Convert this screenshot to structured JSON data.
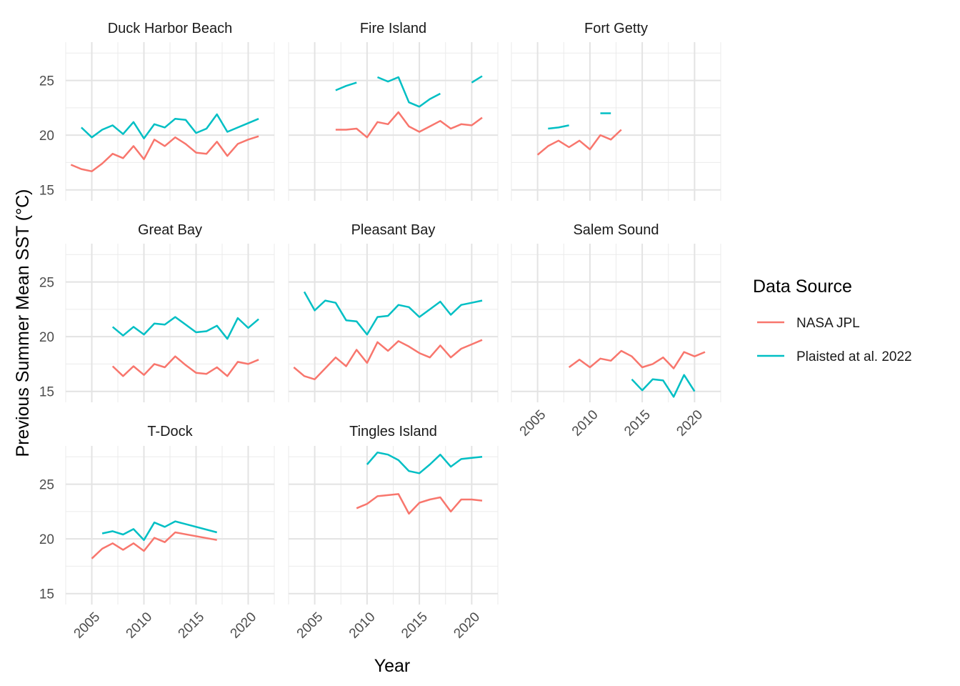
{
  "chart_data": {
    "type": "line",
    "facet": "small-multiples",
    "xlabel": "Year",
    "ylabel": "Previous Summer Mean SST (°C)",
    "xlim": [
      2002.5,
      2022.5
    ],
    "ylim": [
      14,
      28.5
    ],
    "x_ticks": [
      2005,
      2010,
      2015,
      2020
    ],
    "y_ticks": [
      15,
      20,
      25
    ],
    "grid": true,
    "legend": {
      "title": "Data Source",
      "position": "right",
      "entries": [
        {
          "name": "NASA JPL",
          "color": "#F8766D"
        },
        {
          "name": "Plaisted at al. 2022",
          "color": "#00BFC4"
        }
      ]
    },
    "panels": [
      {
        "name": "Duck Harbor Beach",
        "series": [
          {
            "name": "NASA JPL",
            "x": [
              2003,
              2004,
              2005,
              2006,
              2007,
              2008,
              2009,
              2010,
              2011,
              2012,
              2013,
              2014,
              2015,
              2016,
              2017,
              2018,
              2019,
              2020,
              2021
            ],
            "y": [
              17.3,
              16.9,
              16.7,
              17.4,
              18.3,
              17.9,
              19.0,
              17.8,
              19.6,
              19.0,
              19.8,
              19.2,
              18.4,
              18.3,
              19.4,
              18.1,
              19.2,
              19.6,
              19.9
            ]
          },
          {
            "name": "Plaisted at al. 2022",
            "x": [
              2004,
              2005,
              2006,
              2007,
              2008,
              2009,
              2010,
              2011,
              2012,
              2013,
              2014,
              2015,
              2016,
              2017,
              2018,
              2019,
              2020,
              2021
            ],
            "y": [
              20.7,
              19.8,
              20.5,
              20.9,
              20.1,
              21.2,
              19.7,
              21.0,
              20.7,
              21.5,
              21.4,
              20.2,
              20.6,
              21.9,
              20.3,
              20.7,
              21.1,
              21.5
            ]
          }
        ]
      },
      {
        "name": "Fire Island",
        "series": [
          {
            "name": "NASA JPL",
            "x": [
              2007,
              2008,
              2009,
              2010,
              2011,
              2012,
              2013,
              2014,
              2015,
              2016,
              2017,
              2018,
              2019,
              2020,
              2021
            ],
            "y": [
              20.5,
              20.5,
              20.6,
              19.8,
              21.2,
              21.0,
              22.1,
              20.8,
              20.3,
              20.8,
              21.3,
              20.6,
              21.0,
              20.9,
              21.6
            ]
          },
          {
            "name": "Plaisted at al. 2022",
            "x": [
              2007,
              2008,
              2009,
              null,
              2011,
              2012,
              2013,
              2014,
              2015,
              2016,
              2017,
              null,
              2020,
              2021
            ],
            "y": [
              24.1,
              24.5,
              24.8,
              null,
              25.3,
              24.9,
              25.3,
              23.0,
              22.6,
              23.3,
              23.8,
              null,
              24.8,
              25.4
            ]
          }
        ]
      },
      {
        "name": "Fort Getty",
        "series": [
          {
            "name": "NASA JPL",
            "x": [
              2005,
              2006,
              2007,
              2008,
              2009,
              2010,
              2011,
              2012,
              2013
            ],
            "y": [
              18.2,
              19.0,
              19.5,
              18.9,
              19.5,
              18.7,
              20.0,
              19.6,
              20.5
            ]
          },
          {
            "name": "Plaisted at al. 2022",
            "x": [
              2006,
              2007,
              2008,
              null,
              2011,
              2012
            ],
            "y": [
              20.6,
              20.7,
              20.9,
              null,
              22.0,
              22.0
            ]
          }
        ]
      },
      {
        "name": "Great Bay",
        "series": [
          {
            "name": "NASA JPL",
            "x": [
              2007,
              2008,
              2009,
              2010,
              2011,
              2012,
              2013,
              2014,
              2015,
              2016,
              2017,
              2018,
              2019,
              2020,
              2021
            ],
            "y": [
              17.3,
              16.4,
              17.3,
              16.5,
              17.5,
              17.2,
              18.2,
              17.4,
              16.7,
              16.6,
              17.2,
              16.4,
              17.7,
              17.5,
              17.9
            ]
          },
          {
            "name": "Plaisted at al. 2022",
            "x": [
              2007,
              2008,
              2009,
              2010,
              2011,
              2012,
              2013,
              2014,
              2015,
              2016,
              2017,
              2018,
              2019,
              2020,
              2021
            ],
            "y": [
              20.9,
              20.1,
              20.9,
              20.2,
              21.2,
              21.1,
              21.8,
              21.1,
              20.4,
              20.5,
              21.0,
              19.8,
              21.7,
              20.8,
              21.6
            ]
          }
        ]
      },
      {
        "name": "Pleasant Bay",
        "series": [
          {
            "name": "NASA JPL",
            "x": [
              2003,
              2004,
              2005,
              2006,
              2007,
              2008,
              2009,
              2010,
              2011,
              2012,
              2013,
              2014,
              2015,
              2016,
              2017,
              2018,
              2019,
              2020,
              2021
            ],
            "y": [
              17.2,
              16.4,
              16.1,
              17.1,
              18.1,
              17.3,
              18.8,
              17.6,
              19.5,
              18.7,
              19.6,
              19.1,
              18.5,
              18.1,
              19.2,
              18.1,
              18.9,
              19.3,
              19.7
            ]
          },
          {
            "name": "Plaisted at al. 2022",
            "x": [
              2004,
              2005,
              2006,
              2007,
              2008,
              2009,
              2010,
              2011,
              2012,
              2013,
              2014,
              2015,
              2016,
              2017,
              2018,
              2019,
              2020,
              2021
            ],
            "y": [
              24.1,
              22.4,
              23.3,
              23.1,
              21.5,
              21.4,
              20.2,
              21.8,
              21.9,
              22.9,
              22.7,
              21.8,
              22.5,
              23.2,
              22.0,
              22.9,
              23.1,
              23.3
            ]
          }
        ]
      },
      {
        "name": "Salem Sound",
        "series": [
          {
            "name": "NASA JPL",
            "x": [
              2008,
              2009,
              2010,
              2011,
              2012,
              2013,
              2014,
              2015,
              2016,
              2017,
              2018,
              2019,
              2020,
              2021
            ],
            "y": [
              17.2,
              17.9,
              17.2,
              18.0,
              17.8,
              18.7,
              18.2,
              17.2,
              17.5,
              18.1,
              17.1,
              18.6,
              18.2,
              18.6
            ]
          },
          {
            "name": "Plaisted at al. 2022",
            "x": [
              2014,
              2015,
              2016,
              2017,
              2018,
              2019,
              2020
            ],
            "y": [
              16.1,
              15.1,
              16.1,
              16.0,
              14.5,
              16.5,
              15.0
            ]
          }
        ]
      },
      {
        "name": "T-Dock",
        "series": [
          {
            "name": "NASA JPL",
            "x": [
              2005,
              2006,
              2007,
              2008,
              2009,
              2010,
              2011,
              2012,
              2013,
              2017
            ],
            "y": [
              18.2,
              19.1,
              19.6,
              19.0,
              19.6,
              18.9,
              20.1,
              19.7,
              20.6,
              19.9
            ]
          },
          {
            "name": "Plaisted at al. 2022",
            "x": [
              2006,
              2007,
              2008,
              2009,
              2010,
              2011,
              2012,
              2013,
              2017
            ],
            "y": [
              20.5,
              20.7,
              20.4,
              20.9,
              19.9,
              21.5,
              21.1,
              21.6,
              20.6
            ]
          }
        ]
      },
      {
        "name": "Tingles Island",
        "series": [
          {
            "name": "NASA JPL",
            "x": [
              2009,
              2010,
              2011,
              2012,
              2013,
              2014,
              2015,
              2016,
              2017,
              2018,
              2019,
              2020,
              2021
            ],
            "y": [
              22.8,
              23.2,
              23.9,
              24.0,
              24.1,
              22.3,
              23.3,
              23.6,
              23.8,
              22.5,
              23.6,
              23.6,
              23.5
            ]
          },
          {
            "name": "Plaisted at al. 2022",
            "x": [
              2010,
              2011,
              2012,
              2013,
              2014,
              2015,
              2016,
              2017,
              2018,
              2019,
              2020,
              2021
            ],
            "y": [
              26.8,
              27.9,
              27.7,
              27.2,
              26.2,
              26.0,
              26.8,
              27.7,
              26.6,
              27.3,
              27.4,
              27.5
            ]
          }
        ]
      }
    ]
  }
}
